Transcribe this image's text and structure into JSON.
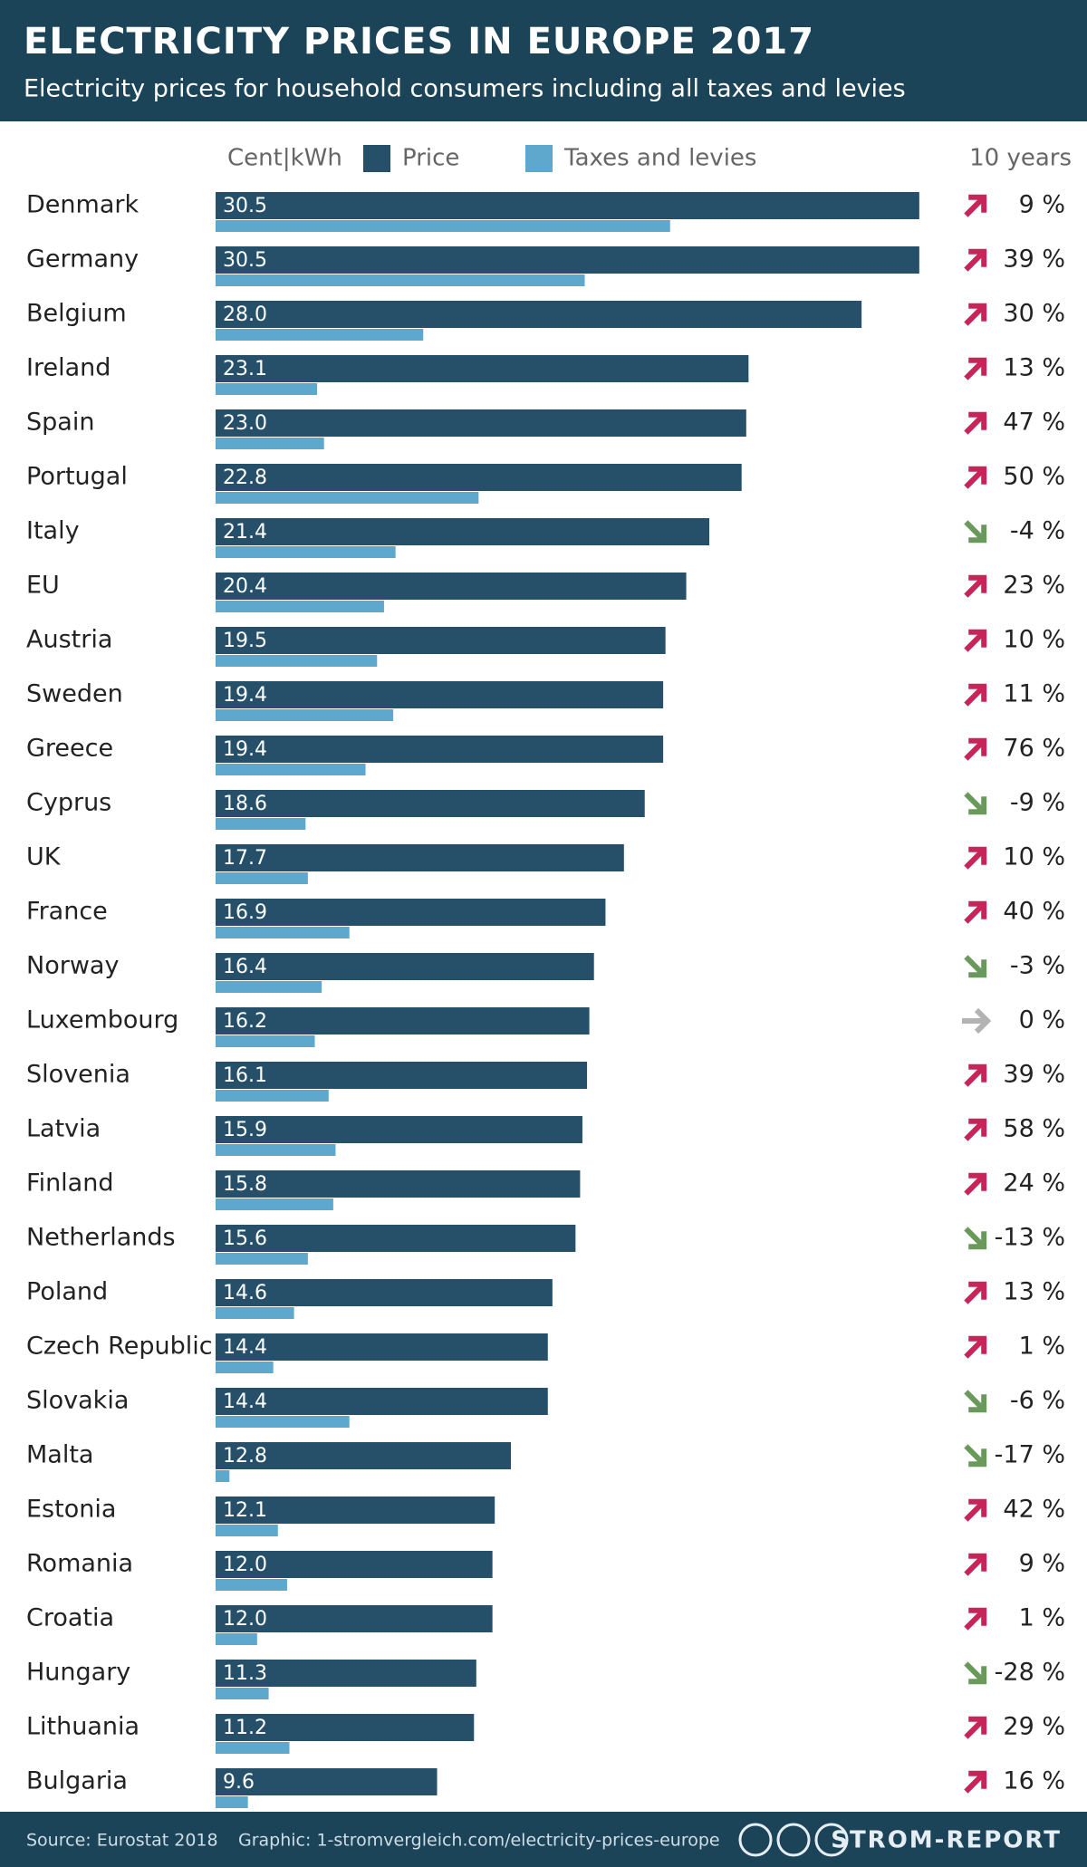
{
  "chart_data": {
    "type": "bar",
    "title": "ELECTRICITY PRICES IN EUROPE 2017",
    "subtitle": "Electricity prices for household consumers including all taxes and levies",
    "unit": "Cent|kWh",
    "categories": [
      "Denmark",
      "Germany",
      "Belgium",
      "Ireland",
      "Spain",
      "Portugal",
      "Italy",
      "EU",
      "Austria",
      "Sweden",
      "Greece",
      "Cyprus",
      "UK",
      "France",
      "Norway",
      "Luxembourg",
      "Slovenia",
      "Latvia",
      "Finland",
      "Netherlands",
      "Poland",
      "Czech Republic",
      "Slovakia",
      "Malta",
      "Estonia",
      "Romania",
      "Croatia",
      "Hungary",
      "Lithuania",
      "Bulgaria"
    ],
    "series": [
      {
        "name": "Price",
        "color": "#26506a",
        "values": [
          30.5,
          30.5,
          28.0,
          23.1,
          23.0,
          22.8,
          21.4,
          20.4,
          19.5,
          19.4,
          19.4,
          18.6,
          17.7,
          16.9,
          16.4,
          16.2,
          16.1,
          15.9,
          15.8,
          15.6,
          14.6,
          14.4,
          14.4,
          12.8,
          12.1,
          12.0,
          12.0,
          11.3,
          11.2,
          9.6
        ],
        "value_labels": [
          "30.5",
          "30.5",
          "28.0",
          "23.1",
          "23.0",
          "22.8",
          "21.4",
          "20.4",
          "19.5",
          "19.4",
          "19.4",
          "18.6",
          "17.7",
          "16.9",
          "16.4",
          "16.2",
          "16.1",
          "15.9",
          "15.8",
          "15.6",
          "14.6",
          "14.4",
          "14.4",
          "12.8",
          "12.1",
          "12.0",
          "12.0",
          "11.3",
          "11.2",
          "9.6"
        ]
      },
      {
        "name": "Taxes and levies",
        "color": "#5ea8cd",
        "values": [
          19.7,
          16.0,
          9.0,
          4.4,
          4.7,
          11.4,
          7.8,
          7.3,
          7.0,
          7.7,
          6.5,
          3.9,
          4.0,
          5.8,
          4.6,
          4.3,
          4.9,
          5.2,
          5.1,
          4.0,
          3.4,
          2.5,
          5.8,
          0.6,
          2.7,
          3.1,
          1.8,
          2.3,
          3.2,
          1.4
        ]
      }
    ],
    "change": {
      "title": "10 years",
      "values": [
        9,
        39,
        30,
        13,
        47,
        50,
        -4,
        23,
        10,
        11,
        76,
        -9,
        10,
        40,
        -3,
        0,
        39,
        58,
        24,
        -13,
        13,
        1,
        -6,
        -17,
        42,
        9,
        1,
        -28,
        29,
        16
      ],
      "value_labels": [
        "9 %",
        "39 %",
        "30 %",
        "13 %",
        "47 %",
        "50 %",
        "-4 %",
        "23 %",
        "10 %",
        "11 %",
        "76 %",
        "-9 %",
        "10 %",
        "40 %",
        "-3 %",
        "0 %",
        "39 %",
        "58 %",
        "24 %",
        "-13 %",
        "13 %",
        "1 %",
        "-6 %",
        "-17 %",
        "42 %",
        "9 %",
        "1 %",
        "-28 %",
        "29 %",
        "16 %"
      ],
      "colors": {
        "up": "#c8245a",
        "down": "#6a9a5b",
        "flat": "#b3b3b3"
      }
    },
    "source": "Source: Eurostat 2018",
    "credit": "Graphic: 1-stromvergleich.com/electricity-prices-europe",
    "brand": "STROM-REPORT"
  }
}
